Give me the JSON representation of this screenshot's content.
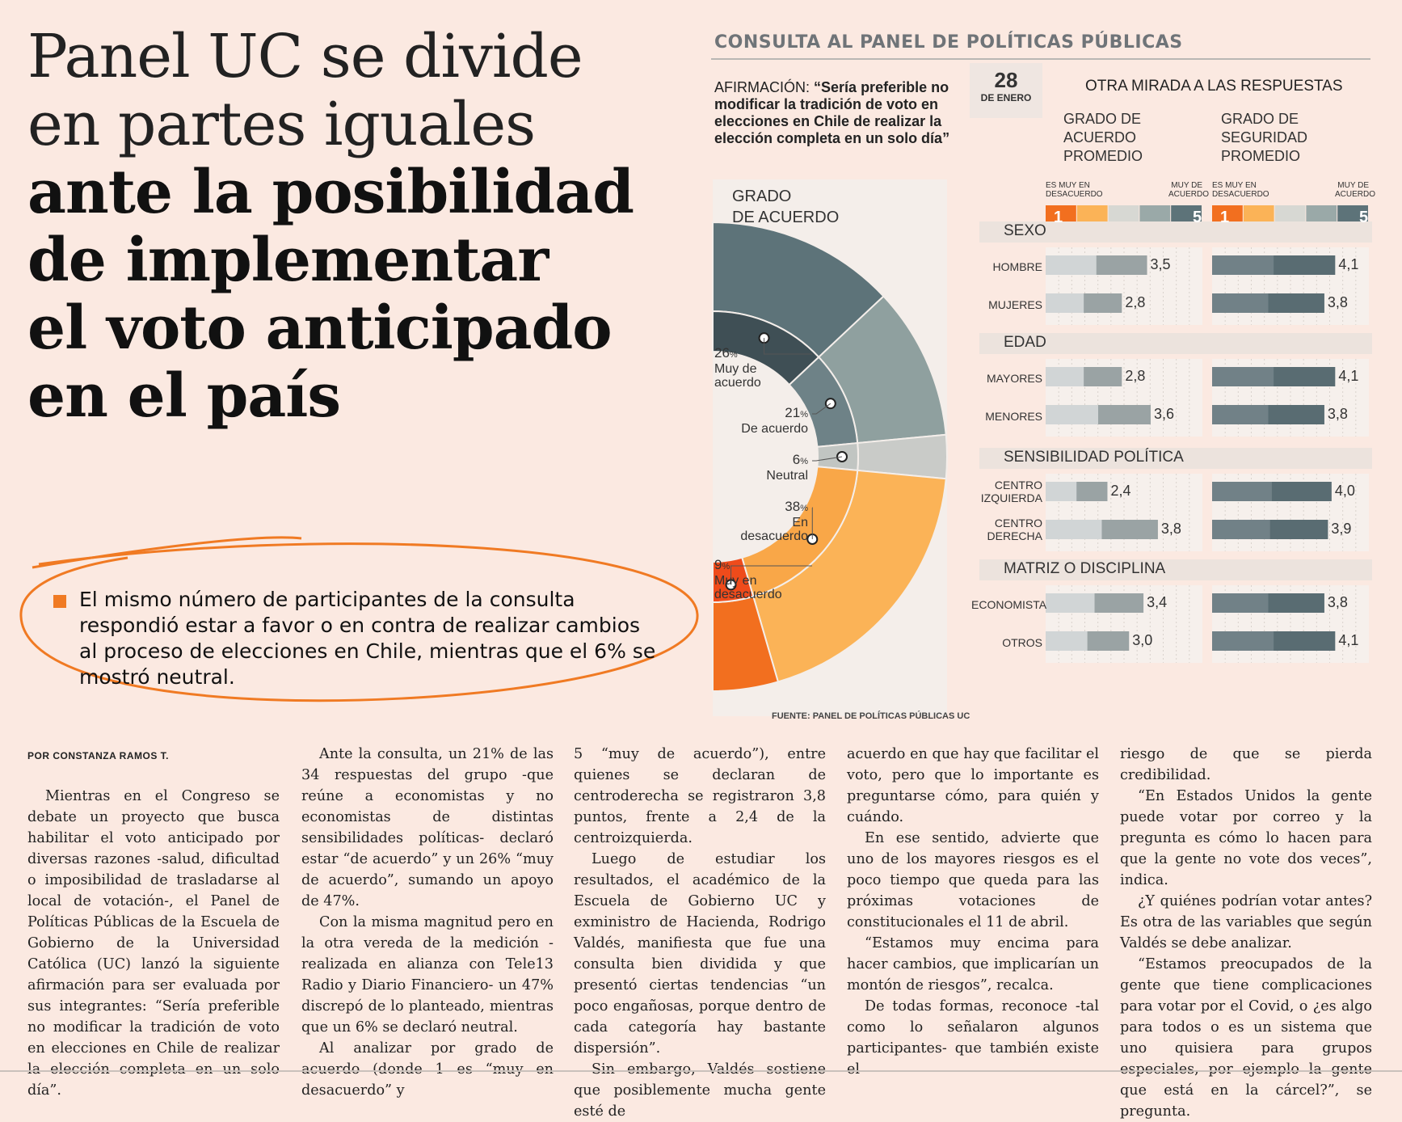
{
  "headline": {
    "light_lines": [
      "Panel UC se divide",
      "en partes iguales"
    ],
    "bold_lines": [
      "ante la posibilidad",
      "de implementar",
      "el voto anticipado",
      "en el país"
    ]
  },
  "lead": "El mismo número de participantes de la consulta respondió estar a favor o en contra de realizar cambios al proceso de elecciones en Chile, mientras que el 6% se mostró neutral.",
  "infographic": {
    "title": "CONSULTA AL PANEL DE POLÍTICAS PÚBLICAS",
    "affirmation_key": "AFIRMACIÓN:",
    "affirmation_quote": "“Sería preferible no modificar la tradición de voto en elecciones en Chile de realizar la elección completa en un solo día”",
    "date_day": "28",
    "date_month": "DE ENERO",
    "other_view_title": "OTRA MIRADA A LAS RESPUESTAS",
    "column_agreement": "GRADO DE ACUERDO PROMEDIO",
    "column_certainty": "GRADO DE SEGURIDAD PROMEDIO",
    "donut_title_1": "GRADO",
    "donut_title_2": "DE ACUERDO",
    "scale_low_1": "ES MUY EN",
    "scale_low_2": "DESACUERDO",
    "scale_high_1": "MUY DE",
    "scale_high_2": "ACUERDO",
    "scale_min": "1",
    "scale_max": "5",
    "source": "FUENTE: PANEL DE POLÍTICAS PÚBLICAS UC",
    "colors": {
      "muy_de_acuerdo": "#3f4f55",
      "de_acuerdo": "#6e8287",
      "neutral": "#c1c5c2",
      "en_desacuerdo": "#f9a748",
      "muy_en_desacuerdo": "#ef4b1b",
      "accent_orange": "#f07a23"
    }
  },
  "chart_data": [
    {
      "type": "pie",
      "title": "GRADO DE ACUERDO",
      "unit": "%",
      "slices": [
        {
          "label": "Muy de acuerdo",
          "value": 26,
          "pct": "26",
          "line1": "Muy de",
          "line2": "acuerdo"
        },
        {
          "label": "De acuerdo",
          "value": 21,
          "pct": "21",
          "line1": "De acuerdo",
          "line2": ""
        },
        {
          "label": "Neutral",
          "value": 6,
          "pct": "6",
          "line1": "Neutral",
          "line2": ""
        },
        {
          "label": "En desacuerdo",
          "value": 38,
          "pct": "38",
          "line1": "En",
          "line2": "desacuerdo"
        },
        {
          "label": "Muy en desacuerdo",
          "value": 9,
          "pct": "9",
          "line1": "Muy en",
          "line2": "desacuerdo"
        }
      ]
    },
    {
      "type": "bar",
      "title": "OTRA MIRADA A LAS RESPUESTAS",
      "scale": [
        1,
        5
      ],
      "groups": [
        {
          "name": "SEXO",
          "rows": [
            {
              "label": "HOMBRE",
              "agreement": "3,5",
              "agreement_value": 3.5,
              "certainty": "4,1",
              "certainty_value": 4.1
            },
            {
              "label": "MUJERES",
              "agreement": "2,8",
              "agreement_value": 2.8,
              "certainty": "3,8",
              "certainty_value": 3.8
            }
          ]
        },
        {
          "name": "EDAD",
          "rows": [
            {
              "label": "MAYORES",
              "agreement": "2,8",
              "agreement_value": 2.8,
              "certainty": "4,1",
              "certainty_value": 4.1
            },
            {
              "label": "MENORES",
              "agreement": "3,6",
              "agreement_value": 3.6,
              "certainty": "3,8",
              "certainty_value": 3.8
            }
          ]
        },
        {
          "name": "SENSIBILIDAD POLÍTICA",
          "rows": [
            {
              "label": "CENTRO IZQUIERDA",
              "agreement": "2,4",
              "agreement_value": 2.4,
              "certainty": "4,0",
              "certainty_value": 4.0
            },
            {
              "label": "CENTRO DERECHA",
              "agreement": "3,8",
              "agreement_value": 3.8,
              "certainty": "3,9",
              "certainty_value": 3.9
            }
          ]
        },
        {
          "name": "MATRIZ O DISCIPLINA",
          "rows": [
            {
              "label": "ECONOMISTA",
              "agreement": "3,4",
              "agreement_value": 3.4,
              "certainty": "3,8",
              "certainty_value": 3.8
            },
            {
              "label": "OTROS",
              "agreement": "3,0",
              "agreement_value": 3.0,
              "certainty": "4,1",
              "certainty_value": 4.1
            }
          ]
        }
      ]
    }
  ],
  "article": {
    "byline": "POR CONSTANZA RAMOS T.",
    "col1": [
      "Mientras en el Congreso se debate un proyecto que busca habilitar el voto anticipado por diversas razones -salud, dificultad o imposibilidad de trasladarse al local de votación-, el Panel de Políticas Públicas de la Escuela de Gobierno de la Universidad Católica (UC) lanzó la siguiente afirmación para ser evaluada por sus integrantes: “Sería preferible no modificar la tradición de voto en elecciones en Chile de realizar la elección completa en un solo día”."
    ],
    "col2": [
      "Ante la consulta, un 21% de las 34 respuestas del grupo -que reúne a economistas y no economistas de distintas sensibilidades políticas- declaró estar “de acuerdo” y un 26% “muy de acuerdo”, sumando un apoyo de 47%.",
      "Con la misma magnitud pero en la otra vereda de la medición -realizada en alianza con Tele13 Radio y Diario Financiero- un 47% discrepó de lo planteado, mientras que un 6% se declaró neutral.",
      "Al analizar por grado de acuerdo (donde 1 es “muy en desacuerdo” y"
    ],
    "col3_cont": "5 “muy de acuerdo”), entre quienes se declaran de centroderecha se registraron 3,8 puntos, frente a 2,4 de la centroizquierda.",
    "col3": [
      "Luego de estudiar los resultados, el académico de la Escuela de Gobierno UC y exministro de Hacienda, Rodrigo Valdés, manifiesta que fue una consulta bien dividida y que presentó ciertas tendencias “un poco engañosas, porque dentro de cada categoría hay bastante dispersión”.",
      "Sin embargo, Valdés sostiene que posiblemente mucha gente esté de"
    ],
    "col4_cont": "acuerdo en que hay que facilitar el voto, pero que lo importante es preguntarse cómo, para quién y cuándo.",
    "col4": [
      "En ese sentido, advierte que uno de los mayores riesgos es el poco tiempo que queda para las próximas votaciones de constitucionales el 11 de abril.",
      "“Estamos muy encima para hacer cambios, que implicarían un montón de riesgos”, recalca.",
      "De todas formas, reconoce -tal como lo señalaron algunos participantes- que también existe el"
    ],
    "col5_cont": "riesgo de que se pierda credibilidad.",
    "col5": [
      "“En Estados Unidos la gente puede votar por correo y la pregunta es cómo lo hacen para que la gente no vote dos veces”, indica.",
      "¿Y quiénes podrían votar antes? Es otra de las variables que según Valdés se debe analizar.",
      "“Estamos preocupados de la gente que tiene complicaciones para votar por el Covid, o ¿es algo para todos o es un sistema que uno quisiera para grupos especiales, por ejemplo la gente que está en la cárcel?”, se pregunta."
    ]
  }
}
